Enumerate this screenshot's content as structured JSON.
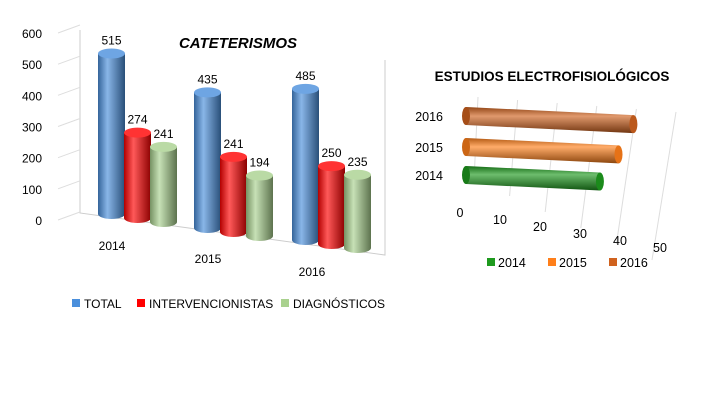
{
  "chart_data": [
    {
      "type": "bar",
      "title": "CATETERISMOS",
      "categories": [
        "2014",
        "2015",
        "2016"
      ],
      "series": [
        {
          "name": "TOTAL",
          "values": [
            515,
            435,
            485
          ],
          "color": "#4a8fdc"
        },
        {
          "name": "INTERVENCIONISTAS",
          "values": [
            274,
            241,
            250
          ],
          "color": "#ff0000"
        },
        {
          "name": "DIAGNÓSTICOS",
          "values": [
            241,
            194,
            235
          ],
          "color": "#a9d18e"
        }
      ],
      "ylim": [
        0,
        600
      ],
      "yticks": [
        "0",
        "100",
        "200",
        "300",
        "400",
        "500",
        "600"
      ],
      "legend": "bottom",
      "style": "3d-cylinder"
    },
    {
      "type": "bar",
      "orientation": "horizontal",
      "title": "ESTUDIOS ELECTROFISIOLÓGICOS",
      "categories": [
        "2014",
        "2015",
        "2016"
      ],
      "values": [
        36,
        41,
        45
      ],
      "colors": [
        "#1e9a1e",
        "#ff7f1a",
        "#d0621e"
      ],
      "xlim": [
        0,
        50
      ],
      "xticks": [
        "0",
        "10",
        "20",
        "30",
        "40",
        "50"
      ],
      "legend_entries": [
        "2014",
        "2015",
        "2016"
      ],
      "legend": "bottom",
      "style": "3d-cylinder"
    }
  ]
}
